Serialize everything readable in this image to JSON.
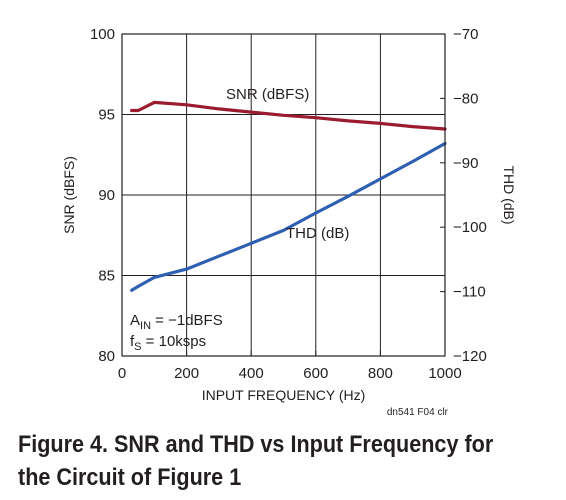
{
  "chart_data": {
    "type": "line",
    "xlabel": "INPUT FREQUENCY (Hz)",
    "ylabel_left": "SNR (dBFS)",
    "ylabel_right": "THD (dB)",
    "xlim": [
      0,
      1000
    ],
    "ylim_left": [
      80,
      100
    ],
    "ylim_right": [
      -120,
      -70
    ],
    "x_ticks": [
      0,
      200,
      400,
      600,
      800,
      1000
    ],
    "y_left_ticks": [
      80,
      85,
      90,
      95,
      100
    ],
    "y_right_ticks": [
      -120,
      -110,
      -100,
      -90,
      -80,
      -70
    ],
    "x_tick_labels": [
      "0",
      "200",
      "400",
      "600",
      "800",
      "1000"
    ],
    "y_left_tick_labels": [
      "80",
      "85",
      "90",
      "95",
      "100"
    ],
    "y_right_tick_labels": [
      "−120",
      "−110",
      "−100",
      "−90",
      "−80",
      "−70"
    ],
    "grid": true,
    "series": [
      {
        "name": "SNR (dBFS)",
        "axis": "left",
        "color": "#9b1b30",
        "x": [
          30,
          50,
          100,
          200,
          300,
          400,
          500,
          600,
          700,
          800,
          900,
          1000
        ],
        "values": [
          95.25,
          95.25,
          95.75,
          95.6,
          95.35,
          95.15,
          94.95,
          94.8,
          94.6,
          94.45,
          94.25,
          94.1
        ]
      },
      {
        "name": "THD (dB)",
        "axis": "right",
        "color": "#2e5fb0",
        "x": [
          30,
          50,
          100,
          200,
          300,
          400,
          500,
          600,
          700,
          800,
          900,
          1000
        ],
        "values": [
          -109.8,
          -109.2,
          -107.8,
          -106.5,
          -104.5,
          -102.5,
          -100.5,
          -97.8,
          -95.2,
          -92.5,
          -89.8,
          -87.0
        ]
      }
    ],
    "annotations": {
      "a_in_main": "A",
      "a_in_sub": "IN",
      "a_in_value": " = −1dBFS",
      "fs_main": "f",
      "fs_sub": "S",
      "fs_value": " = 10ksps"
    },
    "figure_id": "dn541 F04 clr"
  },
  "caption": "Figure 4. SNR and THD vs Input Frequency for the Circuit of Figure 1"
}
